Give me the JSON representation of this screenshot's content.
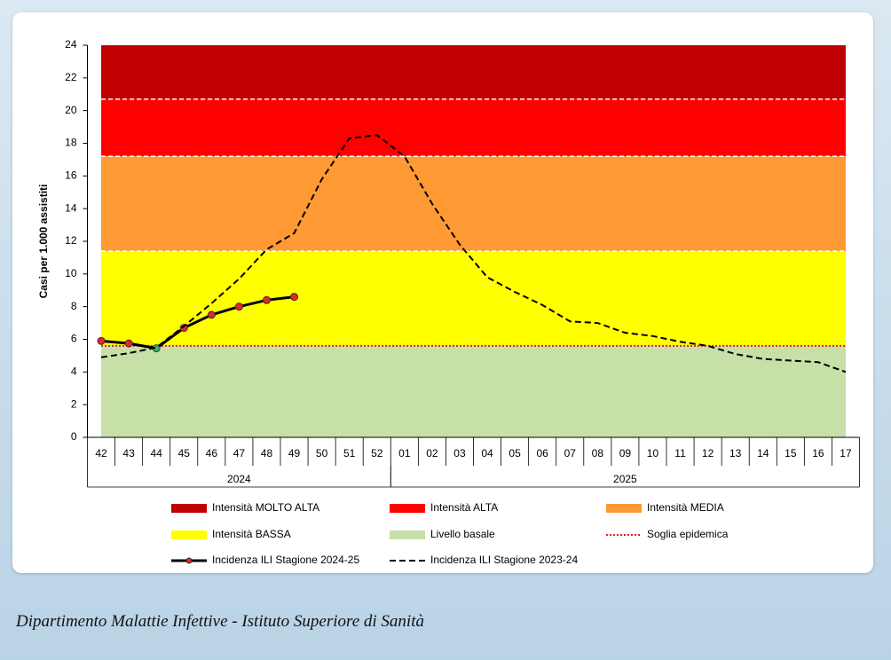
{
  "chart_data": {
    "type": "line",
    "y_label": "Casi per 1.000 assistiti",
    "categories": [
      "42",
      "43",
      "44",
      "45",
      "46",
      "47",
      "48",
      "49",
      "50",
      "51",
      "52",
      "01",
      "02",
      "03",
      "04",
      "05",
      "06",
      "07",
      "08",
      "09",
      "10",
      "11",
      "12",
      "13",
      "14",
      "15",
      "16",
      "17"
    ],
    "groups": [
      {
        "label": "2024",
        "count": 11
      },
      {
        "label": "2025",
        "count": 17
      }
    ],
    "ylim": [
      0,
      24
    ],
    "yticks": [
      0,
      2,
      4,
      6,
      8,
      10,
      12,
      14,
      16,
      18,
      20,
      22,
      24
    ],
    "bands": [
      {
        "name": "Intensità MOLTO ALTA",
        "color": "#c00000",
        "range": [
          20.7,
          24
        ]
      },
      {
        "name": "Intensità ALTA",
        "color": "#ff0000",
        "range": [
          17.2,
          20.7
        ]
      },
      {
        "name": "Intensità MEDIA",
        "color": "#ff9933",
        "range": [
          11.4,
          17.2
        ]
      },
      {
        "name": "Intensità BASSA",
        "color": "#ffff00",
        "range": [
          5.6,
          11.4
        ]
      },
      {
        "name": "Livello basale",
        "color": "#c6e0a8",
        "range": [
          0,
          5.6
        ]
      }
    ],
    "threshold": {
      "name": "Soglia epidemica",
      "value": 5.6,
      "color": "#e02020"
    },
    "series": [
      {
        "name": "Incidenza ILI Stagione 2024-25",
        "color": "#000000",
        "style": "solid",
        "values": [
          5.9,
          5.75,
          5.45,
          6.7,
          7.5,
          8.0,
          8.4,
          8.6,
          null,
          null,
          null,
          null,
          null,
          null,
          null,
          null,
          null,
          null,
          null,
          null,
          null,
          null,
          null,
          null,
          null,
          null,
          null,
          null
        ],
        "marker_colors": [
          "#e8242a",
          "#e8242a",
          "#3cb371",
          "#e8242a",
          "#e8242a",
          "#e8242a",
          "#e8242a",
          "#e8242a",
          null,
          null,
          null,
          null,
          null,
          null,
          null,
          null,
          null,
          null,
          null,
          null,
          null,
          null,
          null,
          null,
          null,
          null,
          null,
          null
        ]
      },
      {
        "name": "Incidenza ILI Stagione 2023-24",
        "color": "#000000",
        "style": "dashed",
        "values": [
          4.9,
          5.15,
          5.5,
          6.8,
          8.2,
          9.7,
          11.5,
          12.5,
          15.8,
          18.3,
          18.5,
          17.2,
          14.3,
          11.8,
          9.8,
          8.9,
          8.1,
          7.1,
          7.0,
          6.4,
          6.2,
          5.85,
          5.6,
          5.1,
          4.8,
          4.7,
          4.6,
          4.0
        ]
      }
    ]
  },
  "caption": "Dipartimento Malattie Infettive - Istituto Superiore di Sanità"
}
